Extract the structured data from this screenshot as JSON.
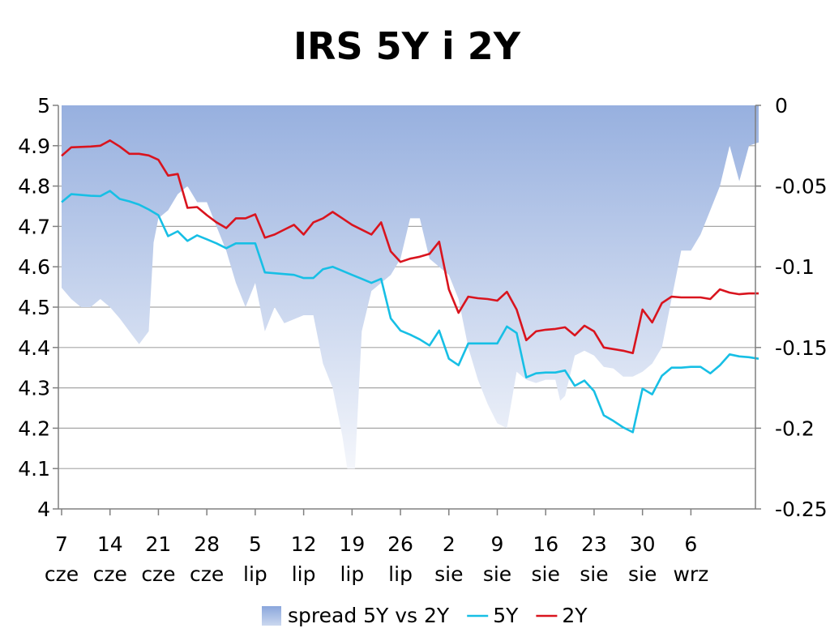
{
  "chart_data": {
    "type": "line",
    "title": "IRS 5Y i 2Y",
    "left_axis": {
      "min": 4.0,
      "max": 5.0,
      "step": 0.1,
      "ticks": [
        "5",
        "4.9",
        "4.8",
        "4.7",
        "4.6",
        "4.5",
        "4.4",
        "4.3",
        "4.2",
        "4.1",
        "4"
      ]
    },
    "right_axis": {
      "min": -0.25,
      "max": 0,
      "step": 0.05,
      "ticks": [
        "0",
        "-0.05",
        "-0.1",
        "-0.15",
        "-0.2",
        "-0.25"
      ]
    },
    "x_ticks": [
      {
        "day": "7",
        "month": "cze"
      },
      {
        "day": "14",
        "month": "cze"
      },
      {
        "day": "21",
        "month": "cze"
      },
      {
        "day": "28",
        "month": "cze"
      },
      {
        "day": "5",
        "month": "lip"
      },
      {
        "day": "12",
        "month": "lip"
      },
      {
        "day": "19",
        "month": "lip"
      },
      {
        "day": "26",
        "month": "lip"
      },
      {
        "day": "2",
        "month": "sie"
      },
      {
        "day": "9",
        "month": "sie"
      },
      {
        "day": "16",
        "month": "sie"
      },
      {
        "day": "23",
        "month": "sie"
      },
      {
        "day": "30",
        "month": "sie"
      },
      {
        "day": "6",
        "month": "wrz"
      }
    ],
    "grid": true,
    "legend_position": "bottom",
    "series": [
      {
        "name": "spread 5Y vs 2Y",
        "type": "area",
        "axis": "right",
        "color": "#9bb3e0",
        "points": [
          [
            0.0,
            -0.113
          ],
          [
            1.0,
            -0.12
          ],
          [
            2.0,
            -0.125
          ],
          [
            3.0,
            -0.125
          ],
          [
            4.0,
            -0.12
          ],
          [
            5.0,
            -0.125
          ],
          [
            6.0,
            -0.132
          ],
          [
            7.0,
            -0.14
          ],
          [
            8.0,
            -0.148
          ],
          [
            9.0,
            -0.14
          ],
          [
            9.5,
            -0.085
          ],
          [
            10.0,
            -0.07
          ],
          [
            11.0,
            -0.065
          ],
          [
            12.0,
            -0.055
          ],
          [
            13.0,
            -0.05
          ],
          [
            14.0,
            -0.06
          ],
          [
            15.0,
            -0.06
          ],
          [
            16.0,
            -0.075
          ],
          [
            17.0,
            -0.09
          ],
          [
            18.0,
            -0.11
          ],
          [
            19.0,
            -0.125
          ],
          [
            20.0,
            -0.11
          ],
          [
            21.0,
            -0.14
          ],
          [
            22.0,
            -0.125
          ],
          [
            23.0,
            -0.135
          ],
          [
            25.0,
            -0.13
          ],
          [
            26.0,
            -0.13
          ],
          [
            27.0,
            -0.16
          ],
          [
            28.0,
            -0.175
          ],
          [
            29.0,
            -0.205
          ],
          [
            29.5,
            -0.225
          ],
          [
            30.3,
            -0.225
          ],
          [
            31.0,
            -0.14
          ],
          [
            32.0,
            -0.115
          ],
          [
            33.0,
            -0.11
          ],
          [
            34.0,
            -0.105
          ],
          [
            35.0,
            -0.095
          ],
          [
            36.0,
            -0.07
          ],
          [
            37.0,
            -0.07
          ],
          [
            38.0,
            -0.095
          ],
          [
            39.0,
            -0.1
          ],
          [
            40.0,
            -0.105
          ],
          [
            41.0,
            -0.12
          ],
          [
            42.0,
            -0.15
          ],
          [
            43.0,
            -0.17
          ],
          [
            44.0,
            -0.185
          ],
          [
            45.0,
            -0.197
          ],
          [
            46.0,
            -0.2
          ],
          [
            47.0,
            -0.165
          ],
          [
            48.0,
            -0.17
          ],
          [
            49.0,
            -0.172
          ],
          [
            50.0,
            -0.17
          ],
          [
            51.0,
            -0.17
          ],
          [
            51.5,
            -0.183
          ],
          [
            52.0,
            -0.18
          ],
          [
            53.0,
            -0.155
          ],
          [
            54.0,
            -0.152
          ],
          [
            55.0,
            -0.155
          ],
          [
            56.0,
            -0.162
          ],
          [
            57.0,
            -0.163
          ],
          [
            58.0,
            -0.168
          ],
          [
            59.0,
            -0.168
          ],
          [
            60.0,
            -0.165
          ],
          [
            61.0,
            -0.16
          ],
          [
            62.0,
            -0.15
          ],
          [
            63.0,
            -0.12
          ],
          [
            64.0,
            -0.09
          ],
          [
            65.0,
            -0.09
          ],
          [
            66.0,
            -0.08
          ],
          [
            67.0,
            -0.065
          ],
          [
            68.0,
            -0.05
          ],
          [
            69.0,
            -0.025
          ],
          [
            70.0,
            -0.047
          ],
          [
            71.0,
            -0.025
          ],
          [
            72.0,
            -0.023
          ]
        ]
      },
      {
        "name": "5Y",
        "type": "line",
        "axis": "left",
        "color": "#17bfe5",
        "points": [
          [
            0.0,
            4.76
          ],
          [
            1.0,
            4.78
          ],
          [
            2.0,
            4.778
          ],
          [
            3.0,
            4.776
          ],
          [
            4.0,
            4.775
          ],
          [
            5.0,
            4.788
          ],
          [
            6.0,
            4.768
          ],
          [
            7.0,
            4.762
          ],
          [
            8.0,
            4.754
          ],
          [
            9.0,
            4.742
          ],
          [
            10.0,
            4.728
          ],
          [
            11.0,
            4.676
          ],
          [
            12.0,
            4.688
          ],
          [
            13.0,
            4.664
          ],
          [
            14.0,
            4.678
          ],
          [
            15.0,
            4.668
          ],
          [
            16.0,
            4.658
          ],
          [
            17.0,
            4.646
          ],
          [
            18.0,
            4.658
          ],
          [
            19.0,
            4.658
          ],
          [
            20.0,
            4.658
          ],
          [
            21.0,
            4.586
          ],
          [
            22.0,
            4.584
          ],
          [
            23.0,
            4.582
          ],
          [
            24.0,
            4.58
          ],
          [
            25.0,
            4.572
          ],
          [
            26.0,
            4.572
          ],
          [
            27.0,
            4.594
          ],
          [
            28.0,
            4.6
          ],
          [
            29.0,
            4.59
          ],
          [
            30.0,
            4.58
          ],
          [
            31.0,
            4.57
          ],
          [
            32.0,
            4.56
          ],
          [
            33.0,
            4.57
          ],
          [
            34.0,
            4.472
          ],
          [
            35.0,
            4.442
          ],
          [
            36.0,
            4.432
          ],
          [
            37.0,
            4.42
          ],
          [
            38.0,
            4.405
          ],
          [
            39.0,
            4.442
          ],
          [
            40.0,
            4.372
          ],
          [
            41.0,
            4.356
          ],
          [
            42.0,
            4.41
          ],
          [
            43.0,
            4.41
          ],
          [
            44.0,
            4.41
          ],
          [
            45.0,
            4.41
          ],
          [
            46.0,
            4.452
          ],
          [
            47.0,
            4.436
          ],
          [
            48.0,
            4.326
          ],
          [
            49.0,
            4.336
          ],
          [
            50.0,
            4.338
          ],
          [
            51.0,
            4.338
          ],
          [
            52.0,
            4.343
          ],
          [
            53.0,
            4.305
          ],
          [
            54.0,
            4.318
          ],
          [
            55.0,
            4.292
          ],
          [
            56.0,
            4.232
          ],
          [
            57.0,
            4.218
          ],
          [
            58.0,
            4.202
          ],
          [
            59.0,
            4.19
          ],
          [
            60.0,
            4.298
          ],
          [
            61.0,
            4.284
          ],
          [
            62.0,
            4.33
          ],
          [
            63.0,
            4.35
          ],
          [
            64.0,
            4.35
          ],
          [
            65.0,
            4.352
          ],
          [
            66.0,
            4.352
          ],
          [
            67.0,
            4.336
          ],
          [
            68.0,
            4.356
          ],
          [
            69.0,
            4.383
          ],
          [
            70.0,
            4.378
          ],
          [
            71.0,
            4.376
          ],
          [
            72.0,
            4.372
          ]
        ]
      },
      {
        "name": "2Y",
        "type": "line",
        "axis": "left",
        "color": "#d9141e",
        "points": [
          [
            0.0,
            4.875
          ],
          [
            1.0,
            4.896
          ],
          [
            2.0,
            4.897
          ],
          [
            3.0,
            4.898
          ],
          [
            4.0,
            4.9
          ],
          [
            5.0,
            4.913
          ],
          [
            6.0,
            4.898
          ],
          [
            7.0,
            4.88
          ],
          [
            8.0,
            4.88
          ],
          [
            9.0,
            4.876
          ],
          [
            10.0,
            4.865
          ],
          [
            11.0,
            4.826
          ],
          [
            12.0,
            4.83
          ],
          [
            13.0,
            4.746
          ],
          [
            14.0,
            4.748
          ],
          [
            15.0,
            4.728
          ],
          [
            16.0,
            4.71
          ],
          [
            17.0,
            4.696
          ],
          [
            18.0,
            4.72
          ],
          [
            19.0,
            4.72
          ],
          [
            20.0,
            4.73
          ],
          [
            21.0,
            4.672
          ],
          [
            22.0,
            4.68
          ],
          [
            23.0,
            4.692
          ],
          [
            24.0,
            4.704
          ],
          [
            25.0,
            4.68
          ],
          [
            26.0,
            4.71
          ],
          [
            27.0,
            4.72
          ],
          [
            28.0,
            4.736
          ],
          [
            29.0,
            4.72
          ],
          [
            30.0,
            4.704
          ],
          [
            31.0,
            4.692
          ],
          [
            32.0,
            4.68
          ],
          [
            33.0,
            4.71
          ],
          [
            34.0,
            4.638
          ],
          [
            35.0,
            4.612
          ],
          [
            36.0,
            4.62
          ],
          [
            37.0,
            4.625
          ],
          [
            38.0,
            4.632
          ],
          [
            39.0,
            4.662
          ],
          [
            40.0,
            4.544
          ],
          [
            41.0,
            4.486
          ],
          [
            42.0,
            4.526
          ],
          [
            43.0,
            4.522
          ],
          [
            44.0,
            4.52
          ],
          [
            45.0,
            4.516
          ],
          [
            46.0,
            4.538
          ],
          [
            47.0,
            4.494
          ],
          [
            48.0,
            4.418
          ],
          [
            49.0,
            4.44
          ],
          [
            50.0,
            4.444
          ],
          [
            51.0,
            4.446
          ],
          [
            52.0,
            4.45
          ],
          [
            53.0,
            4.43
          ],
          [
            54.0,
            4.454
          ],
          [
            55.0,
            4.44
          ],
          [
            56.0,
            4.4
          ],
          [
            57.0,
            4.396
          ],
          [
            58.0,
            4.392
          ],
          [
            59.0,
            4.386
          ],
          [
            60.0,
            4.494
          ],
          [
            61.0,
            4.462
          ],
          [
            62.0,
            4.51
          ],
          [
            63.0,
            4.526
          ],
          [
            64.0,
            4.524
          ],
          [
            65.0,
            4.524
          ],
          [
            66.0,
            4.524
          ],
          [
            67.0,
            4.52
          ],
          [
            68.0,
            4.544
          ],
          [
            69.0,
            4.536
          ],
          [
            70.0,
            4.532
          ],
          [
            71.0,
            4.534
          ],
          [
            72.0,
            4.534
          ]
        ]
      }
    ]
  }
}
